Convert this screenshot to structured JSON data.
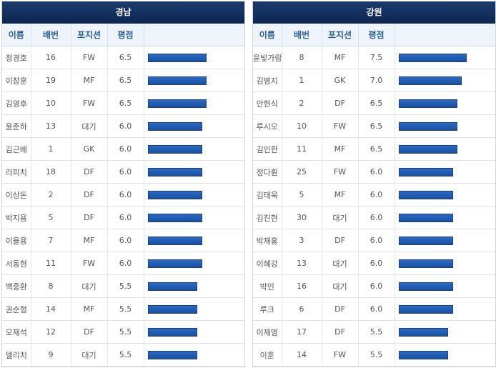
{
  "headers": {
    "name": "이름",
    "number": "배번",
    "position": "포지션",
    "rating": "평점"
  },
  "teams": [
    {
      "name": "경남",
      "players": [
        {
          "name": "정경호",
          "number": "16",
          "position": "FW",
          "rating": "6.5"
        },
        {
          "name": "이창훈",
          "number": "19",
          "position": "MF",
          "rating": "6.5"
        },
        {
          "name": "김영후",
          "number": "10",
          "position": "FW",
          "rating": "6.5"
        },
        {
          "name": "윤준하",
          "number": "13",
          "position": "대기",
          "rating": "6.0"
        },
        {
          "name": "김근배",
          "number": "1",
          "position": "GK",
          "rating": "6.0"
        },
        {
          "name": "라피치",
          "number": "18",
          "position": "DF",
          "rating": "6.0"
        },
        {
          "name": "이상돈",
          "number": "2",
          "position": "DF",
          "rating": "6.0"
        },
        {
          "name": "박지용",
          "number": "5",
          "position": "DF",
          "rating": "6.0"
        },
        {
          "name": "이을용",
          "number": "7",
          "position": "MF",
          "rating": "6.0"
        },
        {
          "name": "서동현",
          "number": "11",
          "position": "FW",
          "rating": "6.0"
        },
        {
          "name": "백종환",
          "number": "8",
          "position": "대기",
          "rating": "5.5"
        },
        {
          "name": "권순형",
          "number": "14",
          "position": "MF",
          "rating": "5.5"
        },
        {
          "name": "오재석",
          "number": "12",
          "position": "DF",
          "rating": "5.5"
        },
        {
          "name": "델리치",
          "number": "9",
          "position": "대기",
          "rating": "5.5"
        }
      ]
    },
    {
      "name": "강원",
      "players": [
        {
          "name": "윤빛가람",
          "number": "8",
          "position": "MF",
          "rating": "7.5"
        },
        {
          "name": "김병지",
          "number": "1",
          "position": "GK",
          "rating": "7.0"
        },
        {
          "name": "안현식",
          "number": "2",
          "position": "DF",
          "rating": "6.5"
        },
        {
          "name": "루시오",
          "number": "10",
          "position": "FW",
          "rating": "6.5"
        },
        {
          "name": "김인한",
          "number": "11",
          "position": "MF",
          "rating": "6.5"
        },
        {
          "name": "정다훤",
          "number": "25",
          "position": "FW",
          "rating": "6.0"
        },
        {
          "name": "김태욱",
          "number": "5",
          "position": "MF",
          "rating": "6.0"
        },
        {
          "name": "김진현",
          "number": "30",
          "position": "대기",
          "rating": "6.0"
        },
        {
          "name": "박재홍",
          "number": "3",
          "position": "DF",
          "rating": "6.0"
        },
        {
          "name": "이혜강",
          "number": "13",
          "position": "대기",
          "rating": "6.0"
        },
        {
          "name": "박민",
          "number": "16",
          "position": "대기",
          "rating": "6.0"
        },
        {
          "name": "루크",
          "number": "6",
          "position": "DF",
          "rating": "6.0"
        },
        {
          "name": "이재명",
          "number": "17",
          "position": "DF",
          "rating": "5.5"
        },
        {
          "name": "이훈",
          "number": "14",
          "position": "FW",
          "rating": "5.5"
        }
      ]
    }
  ],
  "colors": {
    "header_bg": "#0d2650",
    "bar": "#1a4fa3",
    "column_header_text": "#2b5f92"
  }
}
